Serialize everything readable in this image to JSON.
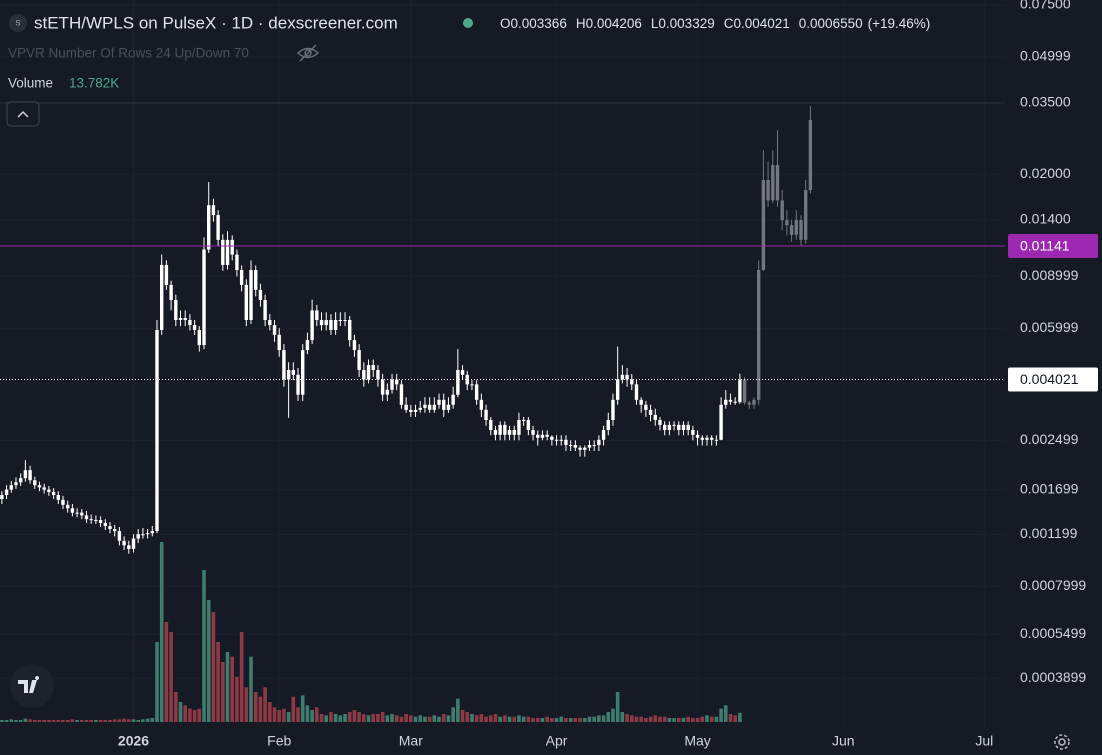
{
  "chart_data": {
    "type": "candlestick",
    "title": "stETH/WPLS on PulseX · 1D · dexscreener.com",
    "symbol_icon": "s",
    "indicator": "VPVR Number Of Rows 24 Up/Down 70",
    "ohlc": [
      {
        "key": "O",
        "value": 0.003366
      },
      {
        "key": "H",
        "value": 0.004206
      },
      {
        "key": "L",
        "value": 0.003329
      },
      {
        "key": "C",
        "value": 0.004021
      }
    ],
    "change": "0.0006550",
    "change_pct": "(+19.46%)",
    "log_scale": true,
    "grid": true,
    "candle_color": "#ffffff",
    "xlim": [
      -0.4,
      213.4
    ],
    "xticks": [
      {
        "value": 28,
        "label": "2026"
      },
      {
        "value": 59,
        "label": "Feb"
      },
      {
        "value": 87,
        "label": "Mar"
      },
      {
        "value": 118,
        "label": "Apr"
      },
      {
        "value": 148,
        "label": "May"
      },
      {
        "value": 179,
        "label": "Jun"
      },
      {
        "value": 209,
        "label": "Jul"
      }
    ],
    "ylim": [
      0.000264,
      0.078
    ],
    "yticks": [
      {
        "value": 0.075,
        "label": "0.07500"
      },
      0.04999,
      {
        "value": 0.035,
        "label": "0.03500"
      },
      {
        "value": 0.02,
        "label": "0.02000"
      },
      {
        "value": 0.014,
        "label": "0.01400"
      },
      0.008999,
      0.005999,
      0.002499,
      0.001699,
      0.001199,
      0.0007999,
      0.0005499,
      0.0003899
    ],
    "price_lines": [
      {
        "value": 0.01141,
        "color": "#9c27b0"
      },
      {
        "value": 0.004021,
        "color": "#ffffff",
        "dotted": true
      }
    ],
    "open": [
      0.00158,
      0.00163,
      0.0017,
      0.00176,
      0.0018,
      0.00186,
      0.00198,
      0.00183,
      0.00176,
      0.00173,
      0.0017,
      0.00167,
      0.00163,
      0.00157,
      0.00151,
      0.00147,
      0.00142,
      0.00142,
      0.00139,
      0.00135,
      0.00134,
      0.00134,
      0.00131,
      0.00128,
      0.00125,
      0.00123,
      0.00114,
      0.0011,
      0.00107,
      0.00116,
      0.0012,
      0.0012,
      0.00121,
      0.00123,
      0.00592,
      0.00984,
      0.00842,
      0.00748,
      0.0064,
      0.0065,
      0.0064,
      0.00615,
      0.00592,
      0.00526,
      0.0111,
      0.01569,
      0.01453,
      0.01197,
      0.00984,
      0.01197,
      0.01067,
      0.00946,
      0.00842,
      0.0064,
      0.00946,
      0.0081,
      0.00748,
      0.0064,
      0.00615,
      0.0057,
      0.00506,
      0.00402,
      0.00433,
      0.00417,
      0.00357,
      0.00506,
      0.00547,
      0.0069,
      0.0064,
      0.00615,
      0.0064,
      0.00592,
      0.0064,
      0.0064,
      0.0064,
      0.00547,
      0.00506,
      0.00433,
      0.00402,
      0.0045,
      0.00433,
      0.00402,
      0.00357,
      0.00371,
      0.00402,
      0.00387,
      0.0033,
      0.00317,
      0.00312,
      0.00317,
      0.00322,
      0.0033,
      0.00317,
      0.0033,
      0.00343,
      0.00317,
      0.0033,
      0.00357,
      0.00433,
      0.00417,
      0.00387,
      0.00387,
      0.00343,
      0.00317,
      0.00293,
      0.00271,
      0.00261,
      0.00282,
      0.00261,
      0.00271,
      0.00261,
      0.00293,
      0.00293,
      0.00271,
      0.00261,
      0.00255,
      0.00261,
      0.00257,
      0.00251,
      0.00251,
      0.00251,
      0.00241,
      0.00241,
      0.00236,
      0.00232,
      0.00236,
      0.00241,
      0.00241,
      0.00251,
      0.00271,
      0.00293,
      0.00343,
      0.00402,
      0.00417,
      0.00402,
      0.00387,
      0.00343,
      0.0033,
      0.00317,
      0.00305,
      0.00293,
      0.00282,
      0.00271,
      0.00282,
      0.00282,
      0.00271,
      0.00282,
      0.00271,
      0.00261,
      0.00255,
      0.00251,
      0.00255,
      0.00251,
      0.00251,
      0.0033,
      0.00343,
      0.00338,
      0.003366,
      0.004021,
      0.00336,
      0.0033,
      0.00343,
      0.00946,
      0.0191,
      0.0163,
      0.02148,
      0.0163,
      0.01397,
      0.01343,
      0.01245,
      0.01397,
      0.01197,
      0.01766
    ],
    "high": [
      0.00168,
      0.00176,
      0.00182,
      0.00187,
      0.00193,
      0.00214,
      0.00205,
      0.00188,
      0.00181,
      0.00178,
      0.00175,
      0.00172,
      0.00168,
      0.00162,
      0.00156,
      0.00152,
      0.00147,
      0.00146,
      0.00144,
      0.0014,
      0.00139,
      0.00138,
      0.00135,
      0.00132,
      0.00129,
      0.00127,
      0.00118,
      0.00114,
      0.0012,
      0.00125,
      0.00126,
      0.00125,
      0.00128,
      0.0064,
      0.01067,
      0.0102,
      0.0087,
      0.0078,
      0.0069,
      0.0069,
      0.0067,
      0.0064,
      0.0061,
      0.0122,
      0.0188,
      0.0165,
      0.0151,
      0.0125,
      0.0128,
      0.0124,
      0.0111,
      0.0098,
      0.0088,
      0.0102,
      0.0098,
      0.0085,
      0.0078,
      0.0067,
      0.0064,
      0.006,
      0.0053,
      0.0046,
      0.0046,
      0.0044,
      0.0053,
      0.0058,
      0.0075,
      0.0072,
      0.0068,
      0.0068,
      0.0067,
      0.0068,
      0.0068,
      0.0068,
      0.0066,
      0.0057,
      0.0053,
      0.0046,
      0.0047,
      0.0047,
      0.0045,
      0.0042,
      0.0039,
      0.0042,
      0.0042,
      0.004,
      0.0035,
      0.0033,
      0.0033,
      0.0034,
      0.0035,
      0.0035,
      0.0035,
      0.0036,
      0.0036,
      0.0035,
      0.0038,
      0.0051,
      0.0045,
      0.0043,
      0.004,
      0.004,
      0.0036,
      0.0033,
      0.003,
      0.0028,
      0.0029,
      0.0029,
      0.0028,
      0.0028,
      0.0031,
      0.003,
      0.003,
      0.0028,
      0.0027,
      0.0027,
      0.0027,
      0.0026,
      0.0026,
      0.0026,
      0.0026,
      0.0025,
      0.0025,
      0.0024,
      0.0024,
      0.0025,
      0.0025,
      0.0026,
      0.0028,
      0.0031,
      0.0036,
      0.0052,
      0.0045,
      0.0044,
      0.0042,
      0.004,
      0.0035,
      0.0034,
      0.0033,
      0.0032,
      0.003,
      0.0029,
      0.0029,
      0.0029,
      0.0029,
      0.0029,
      0.0029,
      0.0028,
      0.0027,
      0.0026,
      0.0026,
      0.0026,
      0.0026,
      0.0035,
      0.0037,
      0.0036,
      0.0035,
      0.004206,
      0.0041,
      0.0034,
      0.0035,
      0.0102,
      0.0241,
      0.0221,
      0.0241,
      0.0282,
      0.0177,
      0.0151,
      0.014,
      0.0151,
      0.0145,
      0.0191,
      0.0341
    ],
    "low": [
      0.00152,
      0.00158,
      0.00166,
      0.00171,
      0.00175,
      0.00181,
      0.00178,
      0.00171,
      0.00168,
      0.00165,
      0.00162,
      0.00158,
      0.00152,
      0.00146,
      0.00142,
      0.00138,
      0.00137,
      0.00135,
      0.00131,
      0.0013,
      0.0013,
      0.00127,
      0.00124,
      0.00121,
      0.00118,
      0.0011,
      0.00106,
      0.00103,
      0.00104,
      0.00112,
      0.00116,
      0.00116,
      0.00118,
      0.00121,
      0.0057,
      0.0081,
      0.0069,
      0.0061,
      0.0061,
      0.0061,
      0.0059,
      0.0057,
      0.005,
      0.0051,
      0.0108,
      0.0138,
      0.0114,
      0.0094,
      0.0095,
      0.0102,
      0.009,
      0.008,
      0.0061,
      0.0062,
      0.0077,
      0.0071,
      0.0061,
      0.0059,
      0.0054,
      0.0048,
      0.0038,
      0.00298,
      0.004,
      0.0034,
      0.0034,
      0.0049,
      0.0053,
      0.0061,
      0.0059,
      0.0059,
      0.0057,
      0.0057,
      0.0061,
      0.0061,
      0.0052,
      0.0048,
      0.0041,
      0.0038,
      0.0039,
      0.0041,
      0.0038,
      0.0034,
      0.0034,
      0.0036,
      0.0037,
      0.0032,
      0.0031,
      0.003,
      0.003,
      0.0031,
      0.0031,
      0.0031,
      0.0031,
      0.0032,
      0.003,
      0.0031,
      0.0032,
      0.0035,
      0.004,
      0.0037,
      0.0037,
      0.0033,
      0.003,
      0.0028,
      0.0026,
      0.0025,
      0.0025,
      0.0025,
      0.0025,
      0.0025,
      0.0025,
      0.0028,
      0.0026,
      0.0025,
      0.0024,
      0.0025,
      0.0025,
      0.0024,
      0.0024,
      0.0024,
      0.0023,
      0.0023,
      0.0023,
      0.0022,
      0.0022,
      0.0023,
      0.0023,
      0.0023,
      0.0024,
      0.0026,
      0.0028,
      0.0033,
      0.0039,
      0.0038,
      0.0037,
      0.0033,
      0.0031,
      0.003,
      0.0029,
      0.0028,
      0.0027,
      0.0026,
      0.0026,
      0.0027,
      0.0026,
      0.0026,
      0.0026,
      0.0025,
      0.0024,
      0.0024,
      0.0024,
      0.0024,
      0.0024,
      0.0025,
      0.0032,
      0.0033,
      0.0033,
      0.003329,
      0.0033,
      0.0032,
      0.0032,
      0.0033,
      0.0094,
      0.0155,
      0.016,
      0.0155,
      0.0129,
      0.0124,
      0.0118,
      0.012,
      0.0114,
      0.0116,
      0.0172
    ],
    "close": [
      0.00163,
      0.0017,
      0.00176,
      0.0018,
      0.00186,
      0.00198,
      0.00183,
      0.00176,
      0.00173,
      0.0017,
      0.00167,
      0.00163,
      0.00157,
      0.00151,
      0.00147,
      0.00142,
      0.00142,
      0.00139,
      0.00135,
      0.00134,
      0.00134,
      0.00131,
      0.00128,
      0.00125,
      0.00123,
      0.00114,
      0.0011,
      0.00107,
      0.00116,
      0.0012,
      0.0012,
      0.00121,
      0.00123,
      0.00592,
      0.00984,
      0.00842,
      0.00748,
      0.0064,
      0.0065,
      0.0064,
      0.00615,
      0.00592,
      0.00526,
      0.0111,
      0.01569,
      0.01453,
      0.01197,
      0.00984,
      0.01197,
      0.01067,
      0.00946,
      0.00842,
      0.0064,
      0.00946,
      0.0081,
      0.00748,
      0.0064,
      0.00615,
      0.0057,
      0.00506,
      0.00402,
      0.00433,
      0.00417,
      0.00357,
      0.00506,
      0.00547,
      0.0069,
      0.0064,
      0.00615,
      0.0064,
      0.00592,
      0.0064,
      0.0064,
      0.0064,
      0.00547,
      0.00506,
      0.00433,
      0.00402,
      0.0045,
      0.00433,
      0.00402,
      0.00357,
      0.00371,
      0.00402,
      0.00387,
      0.0033,
      0.00317,
      0.00312,
      0.00317,
      0.00322,
      0.0033,
      0.00317,
      0.0033,
      0.00343,
      0.00317,
      0.0033,
      0.00357,
      0.00433,
      0.00417,
      0.00387,
      0.00387,
      0.00343,
      0.00317,
      0.00293,
      0.00271,
      0.00261,
      0.00282,
      0.00261,
      0.00271,
      0.00261,
      0.00293,
      0.00293,
      0.00271,
      0.00261,
      0.00255,
      0.00261,
      0.00257,
      0.00251,
      0.00251,
      0.00251,
      0.00241,
      0.00241,
      0.00236,
      0.00232,
      0.00236,
      0.00241,
      0.00241,
      0.00251,
      0.00271,
      0.00293,
      0.00343,
      0.00402,
      0.00417,
      0.00402,
      0.00387,
      0.00343,
      0.0033,
      0.00317,
      0.00305,
      0.00293,
      0.00282,
      0.00271,
      0.00282,
      0.00282,
      0.00271,
      0.00282,
      0.00271,
      0.00261,
      0.00255,
      0.00251,
      0.00255,
      0.00251,
      0.00251,
      0.0033,
      0.00343,
      0.00338,
      0.003366,
      0.004021,
      0.00336,
      0.0033,
      0.00343,
      0.00946,
      0.0191,
      0.0163,
      0.02148,
      0.0163,
      0.01397,
      0.01343,
      0.01245,
      0.01397,
      0.01197,
      0.01766,
      0.03053
    ],
    "volume": {
      "name": "Volume",
      "display": "13.782K",
      "up_color": "#3e7d6e",
      "down_color": "#8e3a45",
      "vlim": [
        0,
        300
      ],
      "values": [
        3,
        3,
        4,
        3,
        3,
        5,
        4,
        3,
        3,
        3,
        3,
        3,
        3,
        3,
        3,
        4,
        3,
        3,
        3,
        3,
        3,
        3,
        3,
        3,
        4,
        4,
        5,
        4,
        4,
        3,
        4,
        5,
        6,
        120,
        270,
        150,
        135,
        45,
        30,
        25,
        20,
        18,
        20,
        228,
        183,
        165,
        120,
        90,
        105,
        98,
        68,
        135,
        52,
        98,
        45,
        38,
        52,
        30,
        22,
        18,
        20,
        15,
        38,
        22,
        40,
        25,
        18,
        22,
        12,
        10,
        15,
        12,
        10,
        12,
        15,
        18,
        15,
        12,
        10,
        12,
        12,
        15,
        10,
        12,
        10,
        8,
        12,
        10,
        8,
        10,
        8,
        8,
        10,
        8,
        12,
        10,
        22,
        35,
        18,
        15,
        12,
        10,
        12,
        8,
        10,
        12,
        8,
        10,
        8,
        8,
        10,
        8,
        8,
        6,
        6,
        6,
        8,
        6,
        6,
        8,
        6,
        6,
        6,
        6,
        6,
        8,
        8,
        10,
        10,
        15,
        20,
        45,
        15,
        12,
        10,
        8,
        8,
        6,
        8,
        10,
        8,
        8,
        6,
        6,
        6,
        6,
        8,
        6,
        6,
        8,
        10,
        8,
        8,
        20,
        25,
        12,
        10,
        13.782,
        null,
        null,
        null,
        null,
        null,
        null,
        null,
        null,
        null,
        null,
        null,
        null,
        null,
        null,
        null
      ]
    }
  }
}
